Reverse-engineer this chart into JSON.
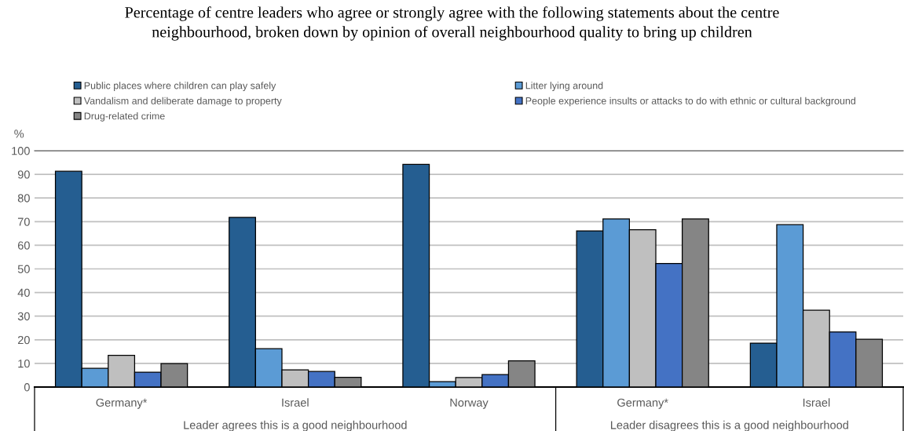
{
  "chart_data": {
    "type": "bar",
    "title": "Percentage of centre leaders who agree or strongly agree with the following statements about the centre\nneighbourhood, broken down by opinion of overall neighbourhood quality to bring up children",
    "ylabel": "%",
    "categories": [
      "Germany*",
      "Israel",
      "Norway",
      "Germany*",
      "Israel"
    ],
    "series": [
      {
        "name": "Public places where children can play safely",
        "color": "#255e91",
        "values": [
          91.3,
          71.8,
          94.2,
          66.1,
          18.6
        ]
      },
      {
        "name": "Litter lying around",
        "color": "#5b9bd5",
        "values": [
          7.9,
          16.2,
          2.3,
          71.1,
          68.7
        ]
      },
      {
        "name": "Vandalism and deliberate damage to property",
        "color": "#bfbfbf",
        "values": [
          13.4,
          7.3,
          4.0,
          66.6,
          32.5
        ]
      },
      {
        "name": "People experience insults or attacks to do with ethnic or cultural background",
        "color": "#4472c4",
        "values": [
          6.3,
          6.6,
          5.3,
          52.3,
          23.3
        ]
      },
      {
        "name": "Drug-related crime",
        "color": "#858585",
        "values": [
          9.9,
          4.1,
          11.1,
          71.1,
          20.2
        ]
      }
    ],
    "annotations": [
      "Leader agrees this is a good neighbourhood",
      "Leader disagrees this is a good neighbourhood"
    ],
    "ylim": [
      0,
      100
    ],
    "yticks": [
      0,
      10,
      20,
      30,
      40,
      50,
      60,
      70,
      80,
      90,
      100
    ],
    "grid": "y",
    "legend": "top"
  }
}
